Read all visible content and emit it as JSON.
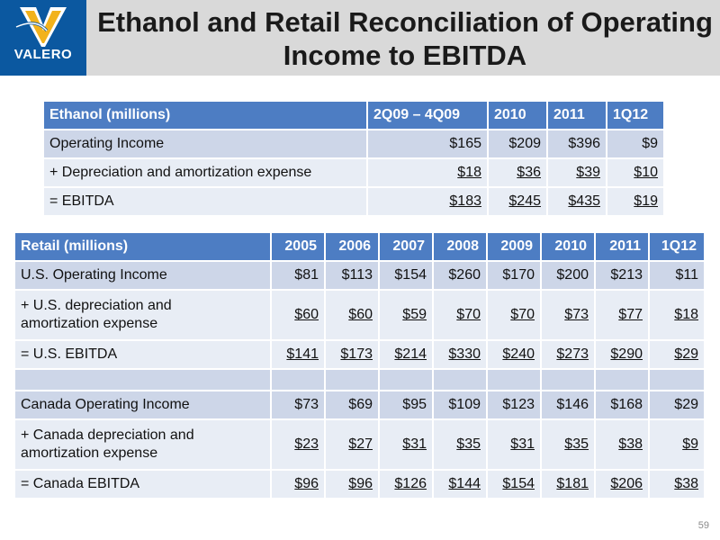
{
  "logo": {
    "text": "VALERO",
    "colors": {
      "blue": "#0b58a0",
      "yellow": "#f2b21b"
    }
  },
  "title": {
    "line1": "Ethanol and Retail Reconciliation of Operating",
    "line2": "Income to EBITDA"
  },
  "ethanol": {
    "headers": [
      "Ethanol (millions)",
      "2Q09 – 4Q09",
      "2010",
      "2011",
      "1Q12"
    ],
    "rows": [
      {
        "label": "Operating Income",
        "values": [
          "$165",
          "$209",
          "$396",
          "$9"
        ]
      },
      {
        "label": "+ Depreciation and amortization expense",
        "values": [
          "$18",
          "$36",
          "$39",
          "$10"
        ]
      },
      {
        "label": "= EBITDA",
        "values": [
          "$183",
          "$245",
          "$435",
          "$19"
        ]
      }
    ]
  },
  "retail": {
    "headers": [
      "Retail (millions)",
      "2005",
      "2006",
      "2007",
      "2008",
      "2009",
      "2010",
      "2011",
      "1Q12"
    ],
    "rows": [
      {
        "label": "U.S. Operating Income",
        "values": [
          "$81",
          "$113",
          "$154",
          "$260",
          "$170",
          "$200",
          "$213",
          "$11"
        ]
      },
      {
        "label": "+ U.S. depreciation and amortization expense",
        "label_line1": "+ U.S. depreciation and",
        "label_line2": "amortization expense",
        "values": [
          "$60",
          "$60",
          "$59",
          "$70",
          "$70",
          "$73",
          "$77",
          "$18"
        ]
      },
      {
        "label": "= U.S. EBITDA",
        "values": [
          "$141",
          "$173",
          "$214",
          "$330",
          "$240",
          "$273",
          "$290",
          "$29"
        ]
      },
      {
        "label": "Canada Operating Income",
        "values": [
          "$73",
          "$69",
          "$95",
          "$109",
          "$123",
          "$146",
          "$168",
          "$29"
        ]
      },
      {
        "label": "+ Canada depreciation and amortization expense",
        "label_line1": "+ Canada depreciation and",
        "label_line2": "amortization expense",
        "values": [
          "$23",
          "$27",
          "$31",
          "$35",
          "$31",
          "$35",
          "$38",
          "$9"
        ]
      },
      {
        "label": "= Canada EBITDA",
        "values": [
          "$96",
          "$96",
          "$126",
          "$144",
          "$154",
          "$181",
          "$206",
          "$38"
        ]
      }
    ]
  },
  "page_number": "59",
  "colors": {
    "header_blue": "#4d7dc3",
    "row_dark": "#cdd6e8",
    "row_light": "#e8edf5",
    "title_bar": "#d9d9d9"
  }
}
